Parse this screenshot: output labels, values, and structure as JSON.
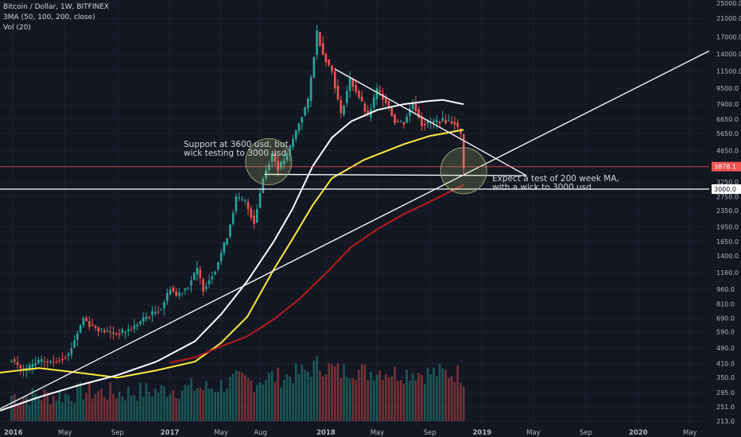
{
  "header": {
    "symbol": "Bitcoin / Dollar, 1W, BITFINEX",
    "indicator": "3MA (50, 100, 200, close)",
    "volume": "Vol (20)"
  },
  "annotations": {
    "support_line1": "Support at 3600 usd, but",
    "support_line2": "wick testing to 3000 usd",
    "expect_line1": "Expect a test of 200 week MA,",
    "expect_line2": "with a wick to 3000 usd"
  },
  "price_labels": {
    "current": "3878.1",
    "level": "3000.0"
  },
  "colors": {
    "background": "#131722",
    "up": "#26a69a",
    "down": "#ef5350",
    "ma50": "#ffeb3b",
    "ma100": "#ffffff",
    "ma200": "#b71c1c",
    "current_price_bg": "#ef5350",
    "level_bg": "#ffffff"
  },
  "chart_data": {
    "type": "candlestick",
    "title": "Bitcoin / Dollar, 1W, BITFINEX",
    "y_scale": "log",
    "ylim": [
      213,
      25000
    ],
    "y_ticks": [
      "25000.0",
      "21000.0",
      "17000.0",
      "14000.0",
      "11500.0",
      "9500.0",
      "7900.0",
      "6650.0",
      "5650.0",
      "4650.0",
      "3250.0",
      "2750.0",
      "2350.0",
      "1950.0",
      "1650.0",
      "1400.0",
      "1160.0",
      "960.0",
      "810.0",
      "690.0",
      "590.0",
      "490.0",
      "410.0",
      "350.0",
      "295.0",
      "251.0",
      "213.0"
    ],
    "x_ticks": [
      "2016",
      "May",
      "Sep",
      "2017",
      "May",
      "Aug",
      "2018",
      "May",
      "Sep",
      "2019",
      "May",
      "Sep",
      "2020",
      "May"
    ],
    "x_range": [
      "2015-12-01",
      "2020-06-15"
    ],
    "close_prices": [
      [
        "2015-12-28",
        430
      ],
      [
        "2016-01-25",
        378
      ],
      [
        "2016-02-29",
        420
      ],
      [
        "2016-04-04",
        418
      ],
      [
        "2016-05-09",
        455
      ],
      [
        "2016-06-13",
        690
      ],
      [
        "2016-06-27",
        640
      ],
      [
        "2016-07-25",
        600
      ],
      [
        "2016-08-29",
        575
      ],
      [
        "2016-10-03",
        610
      ],
      [
        "2016-11-07",
        700
      ],
      [
        "2016-12-12",
        770
      ],
      [
        "2017-01-02",
        980
      ],
      [
        "2017-01-16",
        890
      ],
      [
        "2017-02-13",
        1000
      ],
      [
        "2017-03-06",
        1200
      ],
      [
        "2017-03-20",
        960
      ],
      [
        "2017-04-17",
        1200
      ],
      [
        "2017-05-15",
        1750
      ],
      [
        "2017-06-05",
        2700
      ],
      [
        "2017-06-26",
        2600
      ],
      [
        "2017-07-17",
        2050
      ],
      [
        "2017-08-07",
        3400
      ],
      [
        "2017-08-28",
        4500
      ],
      [
        "2017-09-11",
        3800
      ],
      [
        "2017-10-02",
        4400
      ],
      [
        "2017-10-30",
        6400
      ],
      [
        "2017-11-20",
        8200
      ],
      [
        "2017-12-11",
        18000
      ],
      [
        "2017-12-25",
        14000
      ],
      [
        "2018-01-15",
        11500
      ],
      [
        "2018-02-05",
        7000
      ],
      [
        "2018-02-26",
        10500
      ],
      [
        "2018-03-19",
        8600
      ],
      [
        "2018-04-09",
        6800
      ],
      [
        "2018-04-30",
        9300
      ],
      [
        "2018-05-21",
        8200
      ],
      [
        "2018-06-11",
        6500
      ],
      [
        "2018-07-02",
        6400
      ],
      [
        "2018-07-23",
        8100
      ],
      [
        "2018-08-13",
        6300
      ],
      [
        "2018-09-03",
        6400
      ],
      [
        "2018-10-01",
        6600
      ],
      [
        "2018-10-29",
        6400
      ],
      [
        "2018-11-12",
        5600
      ],
      [
        "2018-11-19",
        3900
      ]
    ],
    "series": [
      {
        "name": "MA 50",
        "points": [
          [
            "2015-12-01",
            370
          ],
          [
            "2016-03-01",
            390
          ],
          [
            "2016-06-01",
            370
          ],
          [
            "2016-09-01",
            350
          ],
          [
            "2016-12-01",
            380
          ],
          [
            "2017-03-01",
            420
          ],
          [
            "2017-05-01",
            520
          ],
          [
            "2017-07-01",
            700
          ],
          [
            "2017-09-01",
            1200
          ],
          [
            "2017-10-15",
            1700
          ],
          [
            "2017-12-01",
            2500
          ],
          [
            "2018-01-15",
            3400
          ],
          [
            "2018-04-01",
            4200
          ],
          [
            "2018-07-01",
            5000
          ],
          [
            "2018-09-01",
            5500
          ],
          [
            "2018-11-19",
            5900
          ]
        ]
      },
      {
        "name": "MA 100",
        "points": [
          [
            "2015-12-01",
            240
          ],
          [
            "2016-03-01",
            280
          ],
          [
            "2016-06-01",
            320
          ],
          [
            "2016-09-01",
            360
          ],
          [
            "2016-12-01",
            420
          ],
          [
            "2017-03-01",
            530
          ],
          [
            "2017-05-01",
            720
          ],
          [
            "2017-07-01",
            1050
          ],
          [
            "2017-09-01",
            1650
          ],
          [
            "2017-10-15",
            2400
          ],
          [
            "2017-12-01",
            3900
          ],
          [
            "2018-01-15",
            5400
          ],
          [
            "2018-03-01",
            6500
          ],
          [
            "2018-05-01",
            7400
          ],
          [
            "2018-07-01",
            7900
          ],
          [
            "2018-09-01",
            8200
          ],
          [
            "2018-10-01",
            8300
          ],
          [
            "2018-11-19",
            7900
          ]
        ]
      },
      {
        "name": "MA 200",
        "points": [
          [
            "2017-01-01",
            415
          ],
          [
            "2017-03-01",
            440
          ],
          [
            "2017-05-01",
            500
          ],
          [
            "2017-07-01",
            560
          ],
          [
            "2017-09-01",
            680
          ],
          [
            "2017-11-01",
            860
          ],
          [
            "2018-01-01",
            1150
          ],
          [
            "2018-03-01",
            1550
          ],
          [
            "2018-05-01",
            1900
          ],
          [
            "2018-07-01",
            2250
          ],
          [
            "2018-09-01",
            2600
          ],
          [
            "2018-11-19",
            3150
          ]
        ]
      }
    ],
    "drawings": [
      {
        "label": "rising trendline",
        "points": [
          [
            "2015-12-01",
            245
          ],
          [
            "2020-06-15",
            14500
          ]
        ]
      },
      {
        "label": "descending trendline",
        "points": [
          [
            "2018-01-22",
            11800
          ],
          [
            "2019-04-15",
            3500
          ]
        ]
      },
      {
        "label": "support line",
        "points": [
          [
            "2017-08-10",
            3550
          ],
          [
            "2019-04-15",
            3500
          ]
        ]
      },
      {
        "label": "level 3000",
        "points": [
          [
            "2015-12-01",
            3000
          ],
          [
            "2020-06-15",
            3000
          ]
        ]
      },
      {
        "label": "current price",
        "points": [
          [
            "2015-12-01",
            3878.1
          ],
          [
            "2020-06-15",
            3878.1
          ]
        ]
      }
    ],
    "circles": [
      {
        "center": [
          "2017-08-20",
          4100
        ]
      },
      {
        "center": [
          "2018-11-19",
          3700
        ]
      }
    ],
    "volume": "relative bars, max at Dec 2017 peak"
  }
}
